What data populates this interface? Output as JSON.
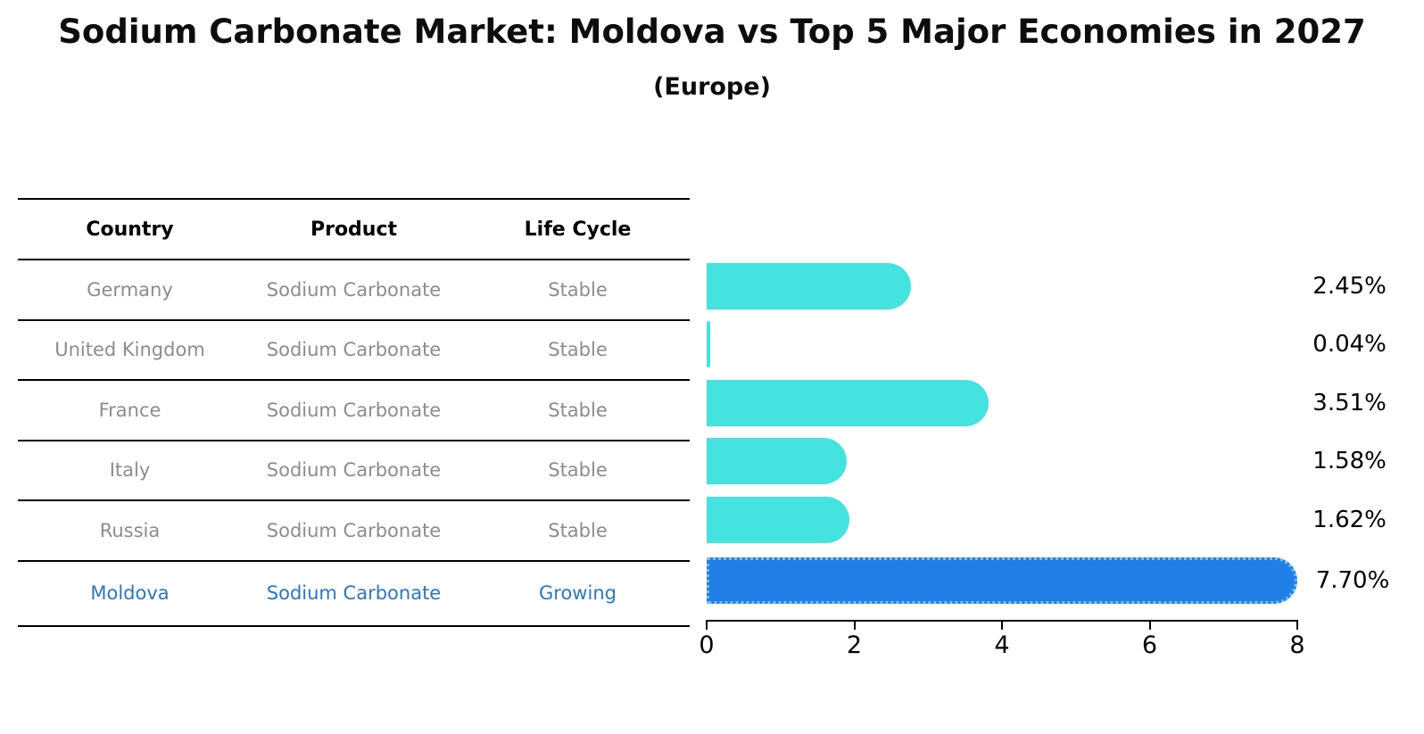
{
  "title": "Sodium Carbonate Market: Moldova vs Top 5 Major Economies in 2027",
  "subtitle": "(Europe)",
  "table": {
    "headers": [
      "Country",
      "Product",
      "Life Cycle"
    ],
    "rows": [
      {
        "country": "Germany",
        "product": "Sodium Carbonate",
        "life_cycle": "Stable",
        "highlight": false
      },
      {
        "country": "United Kingdom",
        "product": "Sodium Carbonate",
        "life_cycle": "Stable",
        "highlight": false
      },
      {
        "country": "France",
        "product": "Sodium Carbonate",
        "life_cycle": "Stable",
        "highlight": false
      },
      {
        "country": "Italy",
        "product": "Sodium Carbonate",
        "life_cycle": "Stable",
        "highlight": false
      },
      {
        "country": "Russia",
        "product": "Sodium Carbonate",
        "life_cycle": "Stable",
        "highlight": false
      },
      {
        "country": "Moldova",
        "product": "Sodium Carbonate",
        "life_cycle": "Growing",
        "highlight": true
      }
    ]
  },
  "chart_data": {
    "type": "bar",
    "orientation": "horizontal",
    "title": "Sodium Carbonate Market: Moldova vs Top 5 Major Economies in 2027 (Europe)",
    "categories": [
      "Germany",
      "United Kingdom",
      "France",
      "Italy",
      "Russia",
      "Moldova"
    ],
    "values": [
      2.45,
      0.04,
      3.51,
      1.58,
      1.62,
      7.7
    ],
    "value_labels": [
      "2.45%",
      "0.04%",
      "3.51%",
      "1.58%",
      "1.62%",
      "7.70%"
    ],
    "xlim": [
      0,
      8
    ],
    "xticks": [
      0,
      2,
      4,
      6,
      8
    ],
    "grid": false,
    "legend": false,
    "highlight_index": 5
  },
  "colors": {
    "bar": "#45e3e0",
    "highlight_bar": "#2080e8",
    "highlight_bar_edge": "#79bdf2",
    "muted_text": "#8c8c8c",
    "highlight_text": "#2878c8",
    "axis": "#000000"
  }
}
